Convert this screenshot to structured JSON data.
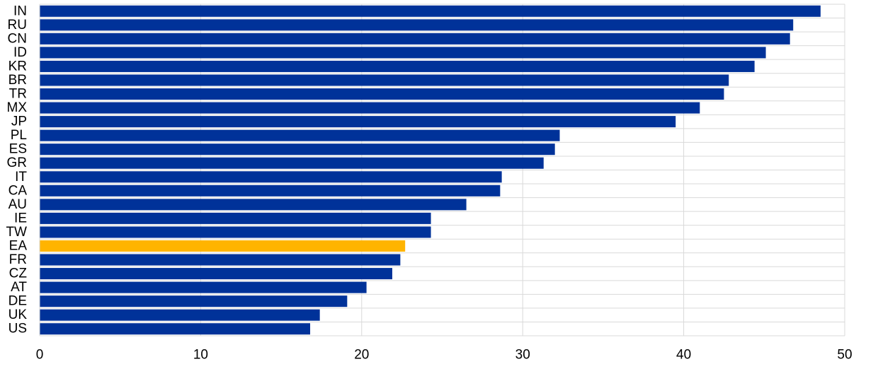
{
  "chart_data": {
    "type": "bar",
    "orientation": "horizontal",
    "title": "",
    "xlabel": "",
    "ylabel": "",
    "xlim": [
      0,
      50
    ],
    "x_ticks": [
      0,
      10,
      20,
      30,
      40,
      50
    ],
    "x_tick_labels": [
      "0",
      "10",
      "20",
      "30",
      "40",
      "50"
    ],
    "grid": true,
    "legend": "none",
    "categories": [
      "IN",
      "RU",
      "CN",
      "ID",
      "KR",
      "BR",
      "TR",
      "MX",
      "JP",
      "PL",
      "ES",
      "GR",
      "IT",
      "CA",
      "AU",
      "IE",
      "TW",
      "EA",
      "FR",
      "CZ",
      "AT",
      "DE",
      "UK",
      "US"
    ],
    "values": [
      48.5,
      46.8,
      46.6,
      45.1,
      44.4,
      42.8,
      42.5,
      41.0,
      39.5,
      32.3,
      32.0,
      31.3,
      28.7,
      28.6,
      26.5,
      24.3,
      24.3,
      22.7,
      22.4,
      21.9,
      20.3,
      19.1,
      17.4,
      16.8
    ],
    "highlight_category": "EA",
    "colors": {
      "bar": "#003299",
      "highlight": "#FFB400",
      "grid": "#D9D9D9",
      "axis": "#D9D9D9"
    }
  }
}
